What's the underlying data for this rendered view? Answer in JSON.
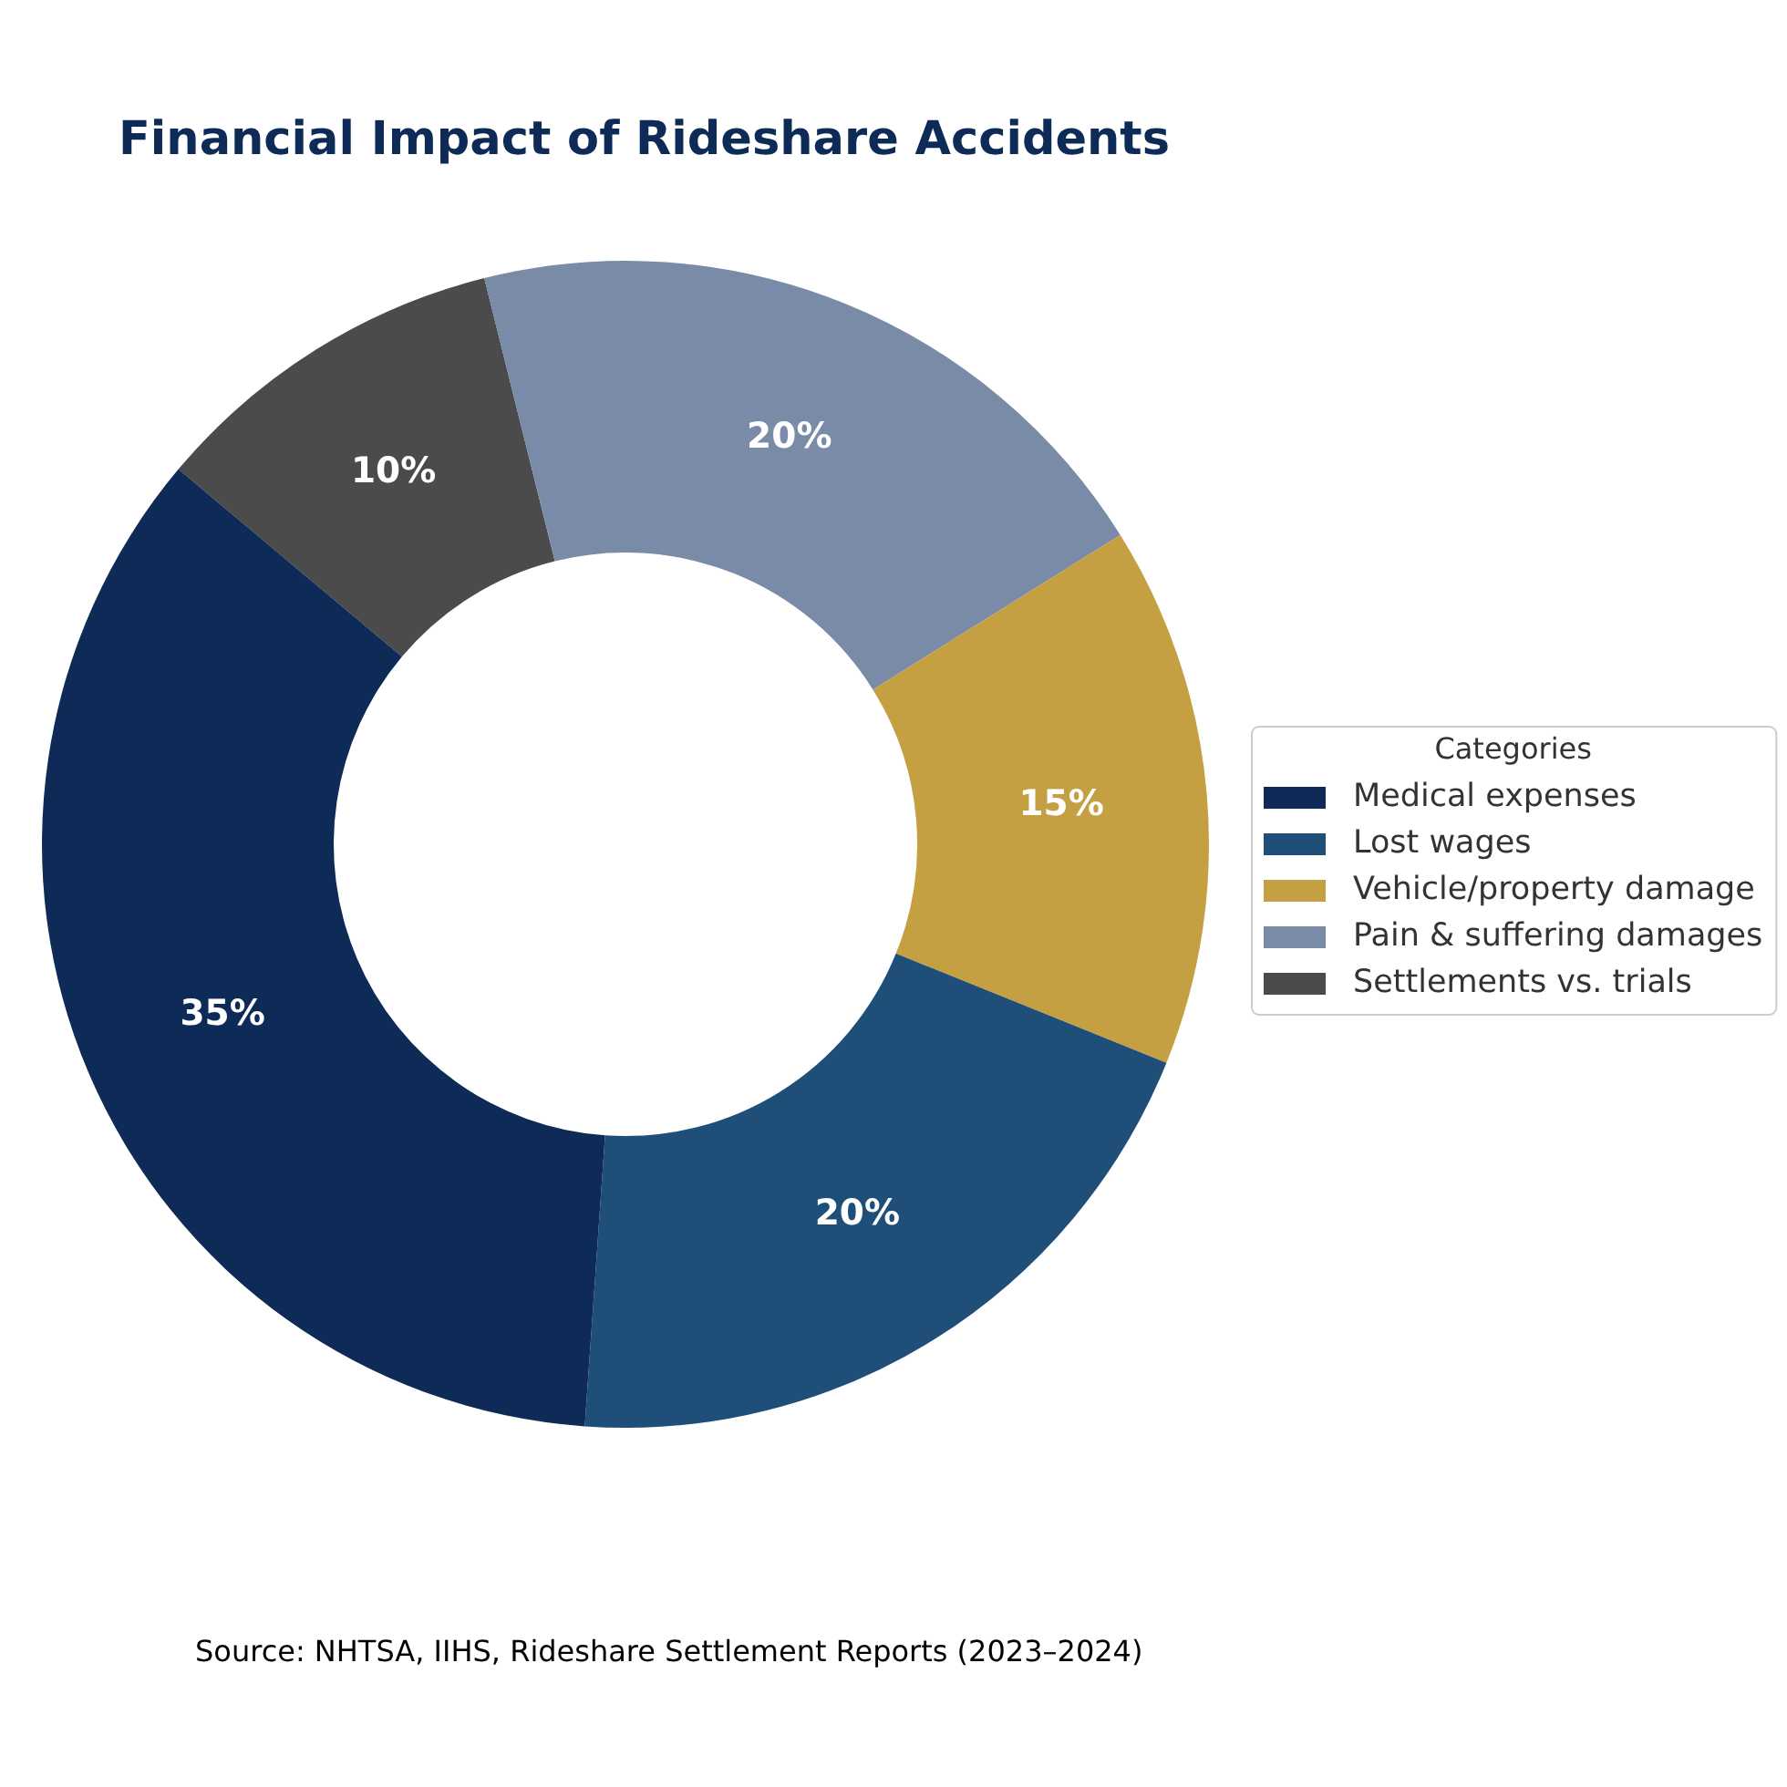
{
  "chart_data": {
    "type": "donut",
    "title": "Financial Impact of Rideshare Accidents",
    "categories": [
      "Medical expenses",
      "Lost wages",
      "Vehicle/property damage",
      "Pain & suffering damages",
      "Settlements vs. trials"
    ],
    "values": [
      35,
      20,
      15,
      20,
      10
    ],
    "colors": [
      "#0d2b56",
      "#1f4e79",
      "#c4a042",
      "#7a8ba8",
      "#4b4b4b"
    ],
    "value_labels": [
      "35%",
      "20%",
      "15%",
      "20%",
      "10%"
    ],
    "legend": "right",
    "legend_title": "Categories",
    "annotations": [
      "Source: NHTSA, IIHS, Rideshare Settlement Reports (2023–2024)"
    ]
  }
}
